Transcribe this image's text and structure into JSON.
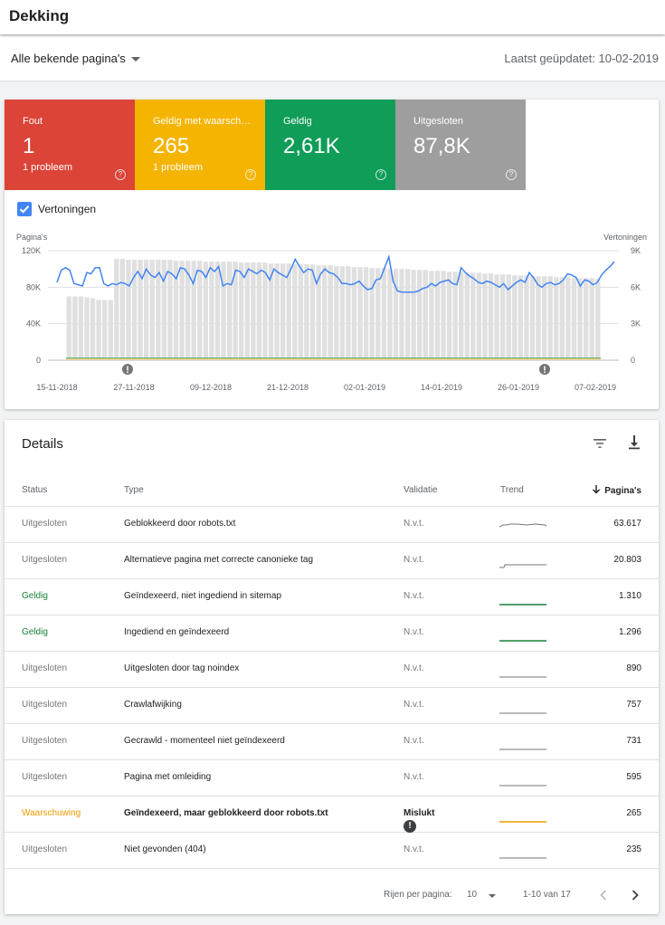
{
  "header": {
    "title": "Dekking"
  },
  "filter": {
    "selected": "Alle bekende pagina's",
    "updated": "Laatst geüpdatet: 10-02-2019"
  },
  "tiles": [
    {
      "label": "Fout",
      "value": "1",
      "sub": "1 probleem",
      "color": "#db4437"
    },
    {
      "label": "Geldig met waarschuwingen",
      "value": "265",
      "sub": "1 probleem",
      "color": "#f4b400"
    },
    {
      "label": "Geldig",
      "value": "2,61K",
      "sub": "",
      "color": "#0f9d58"
    },
    {
      "label": "Uitgesloten",
      "value": "87,8K",
      "sub": "",
      "color": "#9e9e9e"
    }
  ],
  "impressions": {
    "label": "Vertoningen",
    "checked": true
  },
  "chart_data": {
    "type": "bar",
    "ylabel": "Pagina's",
    "ylabel_right": "Vertoningen",
    "yticks": [
      "120K",
      "80K",
      "40K",
      "0"
    ],
    "yticks_right": [
      "9K",
      "6K",
      "3K",
      "0"
    ],
    "ylim": [
      0,
      120000
    ],
    "ylim_right": [
      0,
      9000
    ],
    "xticks": [
      "15-11-2018",
      "27-11-2018",
      "09-12-2018",
      "21-12-2018",
      "02-01-2019",
      "14-01-2019",
      "26-01-2019",
      "07-02-2019"
    ],
    "bars": [
      70000,
      70000,
      70000,
      69000,
      68000,
      66000,
      66000,
      66000,
      111000,
      111000,
      110000,
      110000,
      110000,
      110000,
      110000,
      110000,
      110000,
      110000,
      109000,
      109000,
      109000,
      109000,
      109000,
      108000,
      108000,
      108000,
      108000,
      108000,
      108000,
      107000,
      107000,
      107000,
      107000,
      107000,
      106000,
      106000,
      106000,
      106000,
      105000,
      105000,
      105000,
      105000,
      104000,
      104000,
      104000,
      103000,
      103000,
      103000,
      102000,
      102000,
      102000,
      101000,
      101000,
      101000,
      100000,
      100000,
      100000,
      100000,
      99000,
      99000,
      99000,
      98000,
      98000,
      98000,
      97000,
      97000,
      97000,
      96000,
      96000,
      96000,
      95000,
      95000,
      94000,
      94000,
      94000,
      93000,
      93000,
      93000,
      92000,
      92000,
      92000,
      92000,
      91000,
      91000,
      91000,
      90000,
      90000,
      90000,
      90000,
      89000
    ],
    "line": [
      6400,
      7400,
      7600,
      7400,
      6300,
      6200,
      6100,
      7200,
      7100,
      7600,
      7600,
      6300,
      6100,
      6300,
      6200,
      6400,
      6300,
      6100,
      6800,
      7300,
      6700,
      7500,
      7000,
      6800,
      7200,
      6500,
      7300,
      7100,
      6700,
      7600,
      7500,
      7000,
      6300,
      7400,
      7300,
      6800,
      7600,
      7300,
      7700,
      6100,
      6300,
      6200,
      7400,
      7300,
      6800,
      7500,
      7300,
      7100,
      7400,
      7200,
      6600,
      7500,
      7200,
      7000,
      6800,
      7500,
      8300,
      7700,
      7200,
      7500,
      7400,
      6300,
      7100,
      7500,
      7200,
      7100,
      6800,
      6300,
      6300,
      6200,
      6300,
      6500,
      6100,
      5800,
      5900,
      6600,
      6700,
      7600,
      8500,
      6500,
      5700,
      5600,
      5600,
      5600,
      5600,
      5700,
      5900,
      6000,
      6300,
      6100,
      6400,
      6500,
      6600,
      6300,
      6200,
      7600,
      7200,
      6900,
      6700,
      6400,
      6300,
      6500,
      6400,
      6200,
      6000,
      6300,
      5800,
      6100,
      6400,
      6600,
      6400,
      7200,
      6800,
      6200,
      6000,
      6300,
      6400,
      6200,
      6300,
      6600,
      7100,
      7000,
      6800,
      6100,
      6600,
      6500,
      6200,
      6400,
      7000,
      7400,
      7700,
      8100
    ]
  },
  "details": {
    "title": "Details",
    "columns": {
      "status": "Status",
      "type": "Type",
      "validation": "Validatie",
      "trend": "Trend",
      "pages": "Pagina's"
    },
    "rows": [
      {
        "status": "Uitgesloten",
        "type": "Geblokkeerd door robots.txt",
        "validation": "N.v.t.",
        "pages": "63.617",
        "kind": "excl",
        "trend": "flat-high"
      },
      {
        "status": "Uitgesloten",
        "type": "Alternatieve pagina met correcte canonieke tag",
        "validation": "N.v.t.",
        "pages": "20.803",
        "kind": "excl",
        "trend": "step"
      },
      {
        "status": "Geldig",
        "type": "Geïndexeerd, niet ingediend in sitemap",
        "validation": "N.v.t.",
        "pages": "1.310",
        "kind": "valid",
        "trend": "flat"
      },
      {
        "status": "Geldig",
        "type": "Ingediend en geïndexeerd",
        "validation": "N.v.t.",
        "pages": "1.296",
        "kind": "valid",
        "trend": "flat"
      },
      {
        "status": "Uitgesloten",
        "type": "Uitgesloten door tag noindex",
        "validation": "N.v.t.",
        "pages": "890",
        "kind": "excl",
        "trend": "flat"
      },
      {
        "status": "Uitgesloten",
        "type": "Crawlafwijking",
        "validation": "N.v.t.",
        "pages": "757",
        "kind": "excl",
        "trend": "flat"
      },
      {
        "status": "Uitgesloten",
        "type": "Gecrawld - momenteel niet geïndexeerd",
        "validation": "N.v.t.",
        "pages": "731",
        "kind": "excl",
        "trend": "flat"
      },
      {
        "status": "Uitgesloten",
        "type": "Pagina met omleiding",
        "validation": "N.v.t.",
        "pages": "595",
        "kind": "excl",
        "trend": "flat"
      },
      {
        "status": "Waarschuwing",
        "type": "Geïndexeerd, maar geblokkeerd door robots.txt",
        "validation": "Mislukt",
        "pages": "265",
        "kind": "warn",
        "trend": "flat"
      },
      {
        "status": "Uitgesloten",
        "type": "Niet gevonden (404)",
        "validation": "N.v.t.",
        "pages": "235",
        "kind": "excl",
        "trend": "flat"
      }
    ]
  },
  "pagination": {
    "rows_label": "Rijen per pagina:",
    "rows_value": "10",
    "range": "1-10 van 17"
  }
}
